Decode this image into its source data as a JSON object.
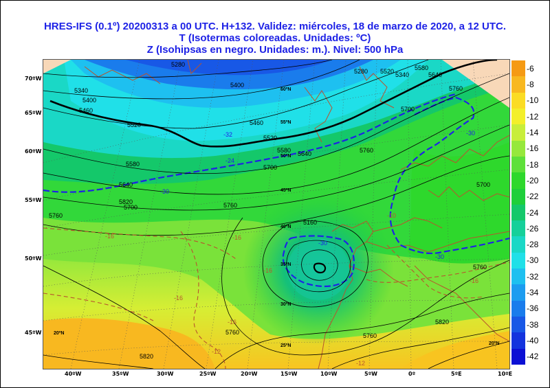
{
  "header": {
    "line1": "HRES-IFS (0.1º) 20200313 a 00 UTC.  H+132. Validez: miércoles, 18 de marzo de 2020,  a  12 UTC.",
    "line2": "T (Isotermas coloreadas. Unidades: ºC)",
    "line3": "Z (Isohipsas en negro. Unidades: m.).   Nivel: 500 hPa"
  },
  "legend": {
    "levels": [
      "-6",
      "-8",
      "-10",
      "-12",
      "-14",
      "-16",
      "-18",
      "-20",
      "-22",
      "-24",
      "-26",
      "-28",
      "-30",
      "-32",
      "-34",
      "-36",
      "-38",
      "-40",
      "-42"
    ],
    "colors": [
      "#f59a14",
      "#f8b820",
      "#fbdc24",
      "#f3ef2a",
      "#c8ee3a",
      "#96e83c",
      "#5ee03a",
      "#2ed82c",
      "#1ecf3a",
      "#14c86a",
      "#16d09a",
      "#1ad8c6",
      "#20e0e8",
      "#1ec0f0",
      "#1c9cf0",
      "#1a7cec",
      "#1858e6",
      "#1434de",
      "#0c10d4"
    ]
  },
  "axes": {
    "left_lat_labels": [
      "70ºW",
      "65ºW",
      "60ºW",
      "55ºW",
      "50ºW",
      "45ºW"
    ],
    "bottom_lon_labels": [
      "40ºW",
      "35ºW",
      "30ºW",
      "25ºW",
      "20ºW",
      "15ºW",
      "10ºW",
      "5ºW",
      "0º",
      "5ºE",
      "10ºE"
    ]
  },
  "map_labels": {
    "height_contours": [
      "5280",
      "5340",
      "5400",
      "5460",
      "5520",
      "5580",
      "5640",
      "5700",
      "5760",
      "5820",
      "5280",
      "5340",
      "5400",
      "5460",
      "5520",
      "5580",
      "5640",
      "5700",
      "5760",
      "5700",
      "5760",
      "5520",
      "5580",
      "5640",
      "5700",
      "5760",
      "5760",
      "5820",
      "5760",
      "5820",
      "5760",
      "5160"
    ],
    "temp_contours": [
      "-32",
      "-30",
      "-24",
      "-30",
      "-16",
      "-16",
      "-16",
      "-16",
      "-16",
      "-30",
      "-12",
      "-16",
      "-12",
      "-10",
      "-30"
    ],
    "grid_lat": [
      "60ºN",
      "55ºN",
      "50ºN",
      "45ºN",
      "40ºN",
      "35ºN",
      "30ºN",
      "25ºN",
      "20ºN",
      "20ºN"
    ]
  }
}
